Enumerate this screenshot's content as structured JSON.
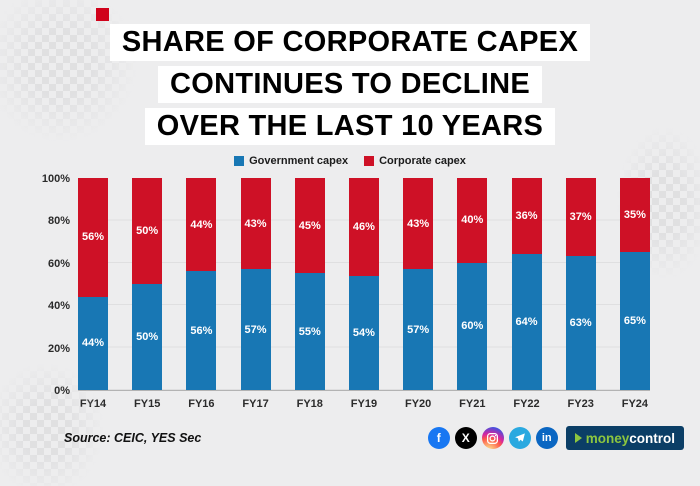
{
  "title": {
    "lines": [
      "SHARE OF CORPORATE CAPEX",
      "CONTINUES TO DECLINE",
      "OVER THE LAST 10 YEARS"
    ]
  },
  "chart_data": {
    "type": "bar",
    "stacked": true,
    "stack_unit": "percent",
    "title": "SHARE OF CORPORATE CAPEX CONTINUES TO DECLINE OVER THE LAST 10 YEARS",
    "categories": [
      "FY14",
      "FY15",
      "FY16",
      "FY17",
      "FY18",
      "FY19",
      "FY20",
      "FY21",
      "FY22",
      "FY23",
      "FY24"
    ],
    "series": [
      {
        "name": "Government capex",
        "color": "#1877b4",
        "values": [
          44,
          50,
          56,
          57,
          55,
          54,
          57,
          60,
          64,
          63,
          65
        ]
      },
      {
        "name": "Corporate capex",
        "color": "#ce1126",
        "values": [
          56,
          50,
          44,
          43,
          45,
          46,
          43,
          40,
          36,
          37,
          35
        ]
      }
    ],
    "xlabel": "",
    "ylabel": "",
    "ylim": [
      0,
      100
    ],
    "yticks": [
      "0%",
      "20%",
      "40%",
      "60%",
      "80%",
      "100%"
    ],
    "legend_position": "top",
    "data_label_format": "{value}%"
  },
  "source": "Source: CEIC, YES Sec",
  "footer": {
    "icons": [
      {
        "name": "facebook-icon",
        "glyph": "f",
        "color": "#1877f2"
      },
      {
        "name": "x-twitter-icon",
        "glyph": "X",
        "color": "#000000"
      },
      {
        "name": "instagram-icon",
        "glyph": "",
        "color": "instagram-gradient"
      },
      {
        "name": "telegram-icon",
        "glyph": "",
        "color": "#2aa9e0"
      },
      {
        "name": "linkedin-icon",
        "glyph": "in",
        "color": "#0a66c2"
      }
    ],
    "brand": {
      "money": "money",
      "control": "control"
    }
  }
}
